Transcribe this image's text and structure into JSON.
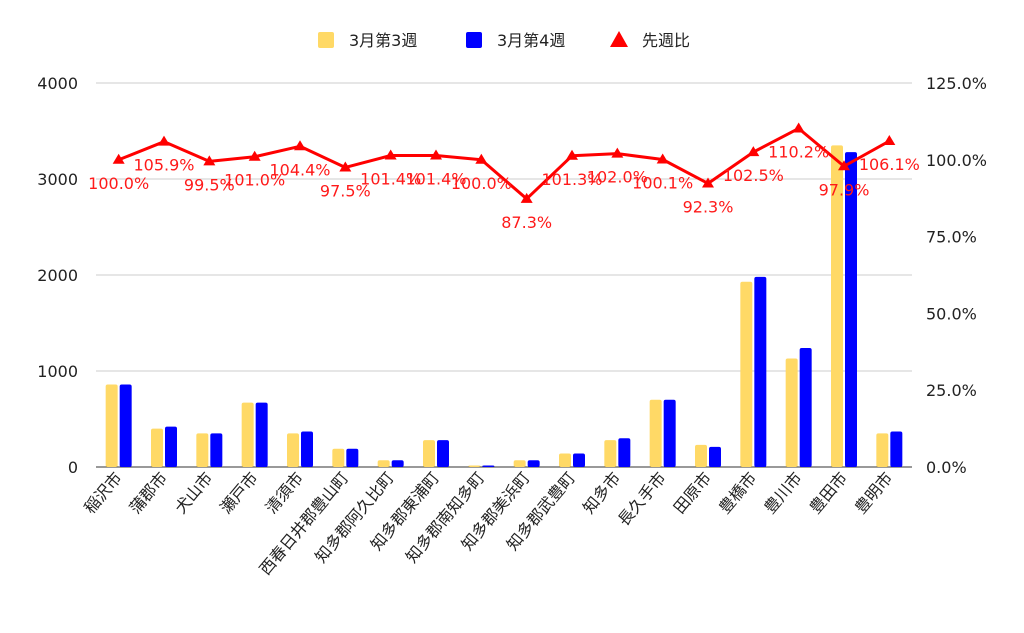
{
  "chart_data": {
    "type": "bar",
    "categories": [
      "稲沢市",
      "蒲郡市",
      "犬山市",
      "瀬戸市",
      "清須市",
      "西春日井郡豊山町",
      "知多郡阿久比町",
      "知多郡東浦町",
      "知多郡南知多町",
      "知多郡美浜町",
      "知多郡武豊町",
      "知多市",
      "長久手市",
      "田原市",
      "豊橋市",
      "豊川市",
      "豊田市",
      "豊明市"
    ],
    "series": [
      {
        "name": "3月第3週",
        "type": "bar",
        "axis": "left",
        "color": "#FFD966",
        "values": [
          860,
          400,
          350,
          670,
          350,
          190,
          70,
          280,
          15,
          70,
          140,
          280,
          700,
          230,
          1930,
          1130,
          3350,
          350
        ]
      },
      {
        "name": "3月第4週",
        "type": "bar",
        "axis": "left",
        "color": "#0000FF",
        "values": [
          860,
          420,
          350,
          670,
          370,
          190,
          70,
          280,
          15,
          70,
          140,
          300,
          700,
          210,
          1980,
          1240,
          3280,
          370
        ]
      },
      {
        "name": "先週比",
        "type": "line",
        "axis": "right",
        "color": "#FF0000",
        "marker": "triangle",
        "values": [
          100.0,
          105.9,
          99.5,
          101.0,
          104.4,
          97.5,
          101.4,
          101.4,
          100.0,
          87.3,
          101.3,
          102.0,
          100.1,
          92.3,
          102.5,
          110.2,
          97.9,
          106.1
        ],
        "labels": [
          "100.0%",
          "105.9%",
          "99.5%",
          "101.0%",
          "104.4%",
          "97.5%",
          "101.4%",
          "101.4%",
          "100.0%",
          "87.3%",
          "101.3%",
          "102.0%",
          "100.1%",
          "92.3%",
          "102.5%",
          "110.2%",
          "97.9%",
          "106.1%"
        ]
      }
    ],
    "y_left": {
      "min": 0,
      "max": 4000,
      "ticks": [
        "0",
        "1000",
        "2000",
        "3000",
        "4000"
      ]
    },
    "y_right": {
      "min": 0,
      "max": 125,
      "ticks": [
        "0.0%",
        "25.0%",
        "50.0%",
        "75.0%",
        "100.0%",
        "125.0%"
      ]
    },
    "legend": "top-center",
    "grid": true,
    "title": "",
    "xlabel": "",
    "ylabel": ""
  }
}
